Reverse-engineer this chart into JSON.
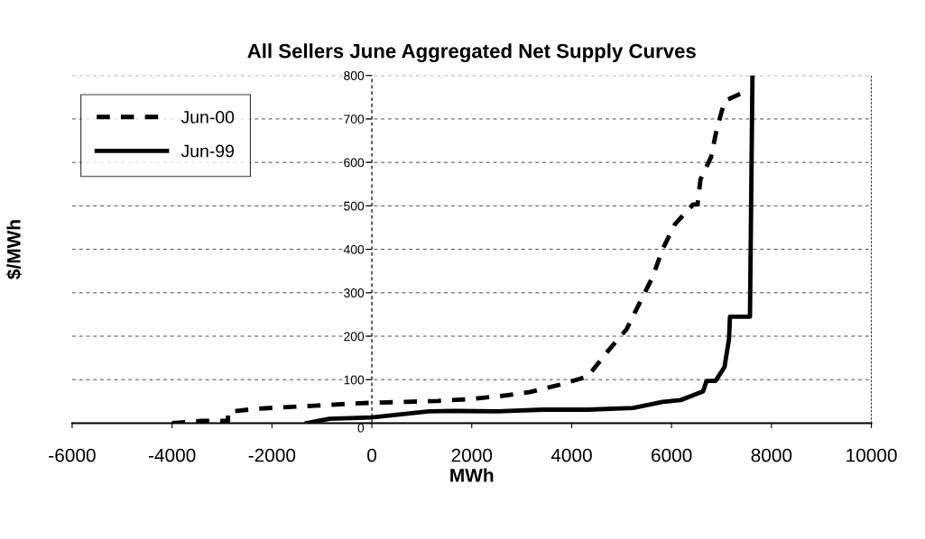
{
  "chart_data": {
    "type": "line",
    "title": "All Sellers June Aggregated Net Supply Curves",
    "xlabel": "MWh",
    "ylabel": "$/MWh",
    "xlim": [
      -6000,
      10000
    ],
    "xticks": [
      -6000,
      -4000,
      -2000,
      0,
      2000,
      4000,
      6000,
      8000,
      10000
    ],
    "ylim": [
      0,
      800
    ],
    "yticks": [
      0,
      100,
      200,
      300,
      400,
      500,
      600,
      700,
      800
    ],
    "grid": "y",
    "ref_lines": [
      {
        "axis": "x",
        "value": 0,
        "line_style": "dashed"
      }
    ],
    "legend": "top left",
    "marker": "none",
    "series": [
      {
        "name": "Jun-00",
        "color": "#000000",
        "line_style": "dashed",
        "x": [
          -4000,
          -3390,
          -2880,
          -2880,
          -2310,
          -1680,
          -1140,
          -540,
          50,
          680,
          1320,
          1930,
          2560,
          3150,
          3750,
          4320,
          4720,
          5100,
          5350,
          5620,
          5820,
          6070,
          6430,
          6520,
          6580,
          6790,
          6900,
          7060,
          7530
        ],
        "values": [
          0,
          5,
          5,
          26,
          33,
          37,
          40,
          44,
          47,
          49,
          51,
          55,
          62,
          71,
          88,
          107,
          165,
          216,
          274,
          336,
          400,
          458,
          503,
          503,
          561,
          612,
          674,
          741,
          766
        ]
      },
      {
        "name": "Jun-99",
        "color": "#000000",
        "line_style": "solid",
        "x": [
          -1300,
          -850,
          0,
          1140,
          1620,
          2520,
          3420,
          4320,
          5230,
          5820,
          6180,
          6630,
          6700,
          6880,
          7060,
          7150,
          7170,
          7570,
          7620
        ],
        "values": [
          0,
          10,
          13,
          27,
          28,
          27,
          31,
          31,
          35,
          49,
          53,
          73,
          97,
          97,
          129,
          193,
          245,
          245,
          800
        ]
      }
    ]
  }
}
